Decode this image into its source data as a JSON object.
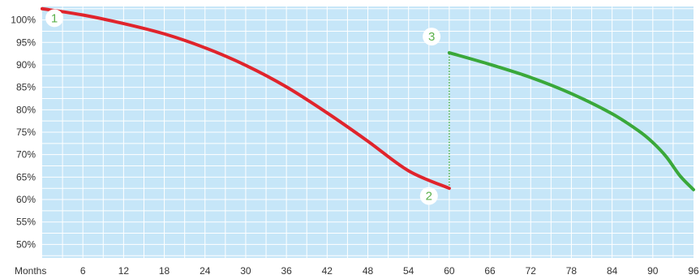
{
  "chart_data": {
    "type": "line",
    "title": "",
    "xlabel": "Months",
    "ylabel": "",
    "xlim": [
      0,
      96
    ],
    "ylim": [
      47,
      103
    ],
    "grid": true,
    "x_ticks": [
      6,
      12,
      18,
      24,
      30,
      36,
      42,
      48,
      54,
      60,
      66,
      72,
      78,
      84,
      90,
      96
    ],
    "y_ticks": [
      100,
      95,
      90,
      85,
      80,
      75,
      70,
      65,
      60,
      55,
      50
    ],
    "y_tick_suffix": "%",
    "colors": {
      "background": "#c6e6f8",
      "grid": "#ffffff",
      "series_1": "#e0242c",
      "series_2": "#3aa83a",
      "marker_text": "#5ab04a"
    },
    "series": [
      {
        "name": "",
        "color": "#e0242c",
        "points": [
          [
            0,
            102.5
          ],
          [
            6,
            101.1
          ],
          [
            12,
            99.2
          ],
          [
            18,
            96.9
          ],
          [
            24,
            93.8
          ],
          [
            30,
            89.9
          ],
          [
            36,
            85.1
          ],
          [
            42,
            79.3
          ],
          [
            48,
            73.0
          ],
          [
            54,
            66.4
          ],
          [
            60,
            62.5
          ]
        ]
      },
      {
        "name": "",
        "color": "#3aa83a",
        "points": [
          [
            60,
            92.7
          ],
          [
            66,
            90.1
          ],
          [
            72,
            87.2
          ],
          [
            78,
            83.6
          ],
          [
            84,
            79.1
          ],
          [
            88,
            75.2
          ],
          [
            90,
            72.7
          ],
          [
            92,
            69.5
          ],
          [
            94,
            65.3
          ],
          [
            96,
            62.2
          ]
        ]
      }
    ],
    "connector": {
      "x": 60,
      "from": 62.5,
      "to": 92.7,
      "style": "dotted"
    },
    "annotations": [
      {
        "label": "1",
        "x": 1.8,
        "y": 100.4
      },
      {
        "label": "2",
        "x": 57,
        "y": 60.8
      },
      {
        "label": "3",
        "x": 57.4,
        "y": 96.3
      }
    ]
  }
}
